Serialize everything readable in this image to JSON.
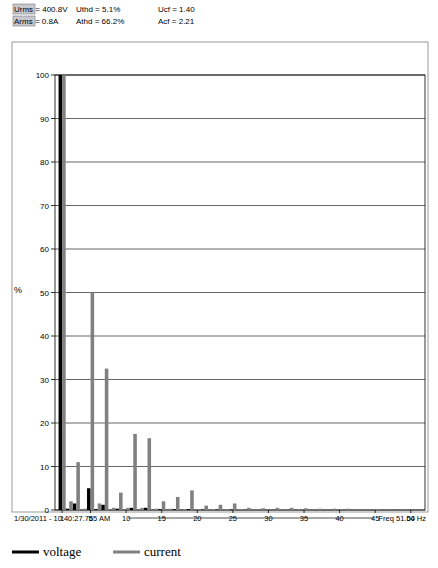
{
  "chart_data": {
    "type": "bar",
    "y_label": "%",
    "annotations": [
      "Urms = 400.8V",
      "Uthd = 5.1%",
      "Ucf = 1.40",
      "Arms = 0.8A",
      "Athd = 66.2%",
      "Acf = 2.21",
      "1/30/2011 - 10:40:27.765 AM",
      "Freq 51.04 Hz"
    ],
    "x": [
      1,
      2,
      3,
      4,
      5,
      6,
      7,
      8,
      9,
      10,
      11,
      12,
      13,
      14,
      15,
      16,
      17,
      18,
      19,
      20,
      21,
      22,
      23,
      24,
      25,
      26,
      27,
      28,
      29,
      30,
      31,
      32,
      33,
      34,
      35,
      36,
      37,
      38,
      39,
      40,
      41,
      42,
      43,
      44,
      45,
      46,
      47,
      48,
      49,
      50
    ],
    "series": [
      {
        "name": "voltage",
        "color": "#000000",
        "values": [
          100,
          0.3,
          1.5,
          0,
          5,
          0.2,
          1.2,
          0,
          0.3,
          0,
          0.5,
          0,
          0.5,
          0,
          0.2,
          0,
          0.2,
          0,
          0.2,
          0,
          0.1,
          0,
          0.1,
          0,
          0.1,
          0,
          0,
          0,
          0,
          0,
          0,
          0,
          0,
          0,
          0,
          0,
          0,
          0,
          0,
          0,
          0,
          0,
          0,
          0,
          0,
          0,
          0,
          0,
          0,
          0
        ]
      },
      {
        "name": "current",
        "color": "#808080",
        "values": [
          100,
          2,
          11,
          0.3,
          50,
          1.5,
          32.5,
          0.5,
          4,
          0.5,
          17.5,
          0.5,
          16.5,
          0.3,
          2,
          0.3,
          3,
          0.2,
          4.5,
          0.2,
          1,
          0.2,
          1.2,
          0.2,
          1.5,
          0.2,
          0.5,
          0.1,
          0.4,
          0.1,
          0.5,
          0.1,
          0.5,
          0.1,
          0.4,
          0.1,
          0.3,
          0.1,
          0.3,
          0.1,
          0.3,
          0.1,
          0.2,
          0.1,
          0.2,
          0,
          0.1,
          0,
          0.1,
          0
        ]
      }
    ],
    "xlim": [
      0,
      52
    ],
    "xticks": [
      1,
      5,
      10,
      15,
      20,
      25,
      30,
      35,
      40,
      45,
      50
    ],
    "ylim": [
      0,
      100
    ],
    "yticks": [
      0,
      10,
      20,
      30,
      40,
      50,
      60,
      70,
      80,
      90,
      100
    ],
    "grid": true,
    "legend": "bottom"
  }
}
